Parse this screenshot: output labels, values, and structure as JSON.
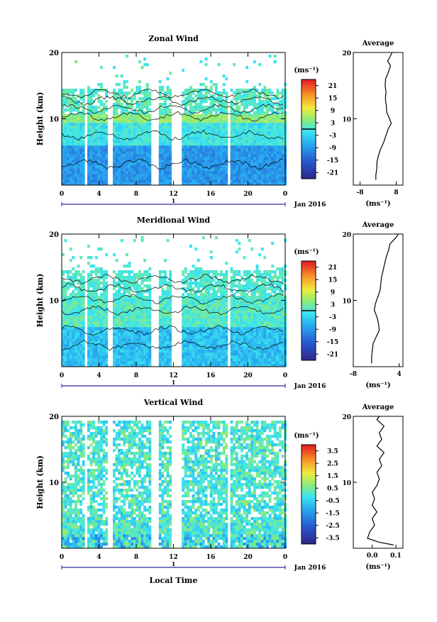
{
  "figure": {
    "time_axis_label": "Local Time",
    "date_label": "Jan 2016",
    "day_label": "1",
    "time_ticks": [
      "0",
      "4",
      "8",
      "12",
      "16",
      "20",
      "0"
    ]
  },
  "chart_data": [
    {
      "type": "heatmap",
      "title": "Zonal Wind",
      "ylabel": "Height (km)",
      "yticks": [
        "20",
        "10"
      ],
      "ylim": [
        0,
        20
      ],
      "xlim": [
        0,
        24
      ],
      "colorbar_unit": "(ms⁻¹)",
      "colorbar_ticks": [
        "21",
        "15",
        "9",
        "3",
        "-3",
        "-9",
        "-15",
        "-21"
      ],
      "colorbar_range": [
        -24,
        24
      ],
      "profile": {
        "title": "Average",
        "xlabel": "(ms⁻¹)",
        "xticks": [
          "-8",
          "8"
        ],
        "xlim": [
          -11,
          11
        ],
        "yticks": [
          "20",
          "10"
        ],
        "points": [
          [
            -1,
            0.8
          ],
          [
            -1,
            1.5
          ],
          [
            -0.6,
            2.5
          ],
          [
            -0.5,
            3.5
          ],
          [
            0.2,
            4.5
          ],
          [
            1.2,
            5.5
          ],
          [
            2.5,
            6.5
          ],
          [
            3.5,
            7.5
          ],
          [
            4.5,
            8.5
          ],
          [
            5.8,
            9.3
          ],
          [
            4.8,
            10.2
          ],
          [
            3.8,
            11
          ],
          [
            3.6,
            12
          ],
          [
            3.2,
            13
          ],
          [
            3.5,
            14
          ],
          [
            3.1,
            15
          ],
          [
            3.3,
            16
          ],
          [
            4.5,
            17
          ],
          [
            5.5,
            18
          ],
          [
            4.2,
            18.7
          ],
          [
            5.2,
            19.3
          ],
          [
            6.2,
            20
          ]
        ]
      },
      "gaps": [
        [
          2.3,
          2.7
        ],
        [
          4.9,
          5.3
        ],
        [
          9.5,
          10.4
        ],
        [
          11.6,
          12.8
        ],
        [
          17.6,
          18
        ]
      ]
    },
    {
      "type": "heatmap",
      "title": "Meridional Wind",
      "ylabel": "Height (km)",
      "yticks": [
        "20",
        "10"
      ],
      "ylim": [
        0,
        20
      ],
      "xlim": [
        0,
        24
      ],
      "colorbar_unit": "(ms⁻¹)",
      "colorbar_ticks": [
        "21",
        "15",
        "9",
        "3",
        "-3",
        "-9",
        "-15",
        "-21"
      ],
      "colorbar_range": [
        -24,
        24
      ],
      "profile": {
        "title": "Average",
        "xlabel": "(ms⁻¹)",
        "xticks": [
          "-8",
          "4"
        ],
        "xlim": [
          -8,
          5
        ],
        "yticks": [
          "20",
          "10"
        ],
        "points": [
          [
            -3.2,
            0.5
          ],
          [
            -3.2,
            1.5
          ],
          [
            -3,
            2.5
          ],
          [
            -2.8,
            3.5
          ],
          [
            -2,
            4.5
          ],
          [
            -1.2,
            5.5
          ],
          [
            -1.4,
            6.5
          ],
          [
            -1.8,
            7.5
          ],
          [
            -2.5,
            8.5
          ],
          [
            -2.2,
            9.5
          ],
          [
            -1.6,
            10.5
          ],
          [
            -1,
            11.5
          ],
          [
            -0.8,
            12.5
          ],
          [
            -0.6,
            13.5
          ],
          [
            -0.2,
            14.5
          ],
          [
            0.2,
            15.5
          ],
          [
            0.6,
            16.5
          ],
          [
            1.2,
            17.5
          ],
          [
            1.6,
            18.5
          ],
          [
            3.2,
            19.5
          ],
          [
            3.8,
            20
          ]
        ]
      },
      "gaps": [
        [
          2.3,
          2.7
        ],
        [
          4.9,
          5.3
        ],
        [
          9.5,
          10.4
        ],
        [
          11.6,
          12.8
        ],
        [
          17.6,
          18
        ]
      ]
    },
    {
      "type": "heatmap",
      "title": "Vertical Wind",
      "ylabel": "Height (km)",
      "yticks": [
        "20",
        "10"
      ],
      "ylim": [
        0,
        20
      ],
      "xlim": [
        0,
        24
      ],
      "colorbar_unit": "(ms⁻¹)",
      "colorbar_ticks": [
        "3.5",
        "2.5",
        "1.5",
        "0.5",
        "-0.5",
        "-1.5",
        "-2.5",
        "-3.5"
      ],
      "colorbar_range": [
        -4,
        4
      ],
      "profile": {
        "title": "Average",
        "xlabel": "(ms⁻¹)",
        "xticks": [
          "0.0",
          "0.1"
        ],
        "xlim": [
          -0.08,
          0.13
        ],
        "yticks": [
          "20",
          "10"
        ],
        "points": [
          [
            0.09,
            0.5
          ],
          [
            0.03,
            0.9
          ],
          [
            -0.02,
            1.5
          ],
          [
            -0.01,
            2.5
          ],
          [
            0.01,
            3.5
          ],
          [
            0.0,
            4.5
          ],
          [
            0.02,
            5.5
          ],
          [
            0.0,
            6.5
          ],
          [
            0.01,
            7.5
          ],
          [
            0.0,
            8.5
          ],
          [
            0.02,
            9.5
          ],
          [
            0.03,
            10.5
          ],
          [
            0.02,
            11.5
          ],
          [
            0.04,
            12.5
          ],
          [
            0.03,
            13.5
          ],
          [
            0.05,
            14.5
          ],
          [
            0.02,
            15.5
          ],
          [
            0.04,
            16.5
          ],
          [
            0.03,
            17.5
          ],
          [
            0.05,
            18.5
          ],
          [
            0.02,
            19.5
          ],
          [
            0.03,
            20
          ]
        ]
      },
      "gaps": [
        [
          2.3,
          2.7
        ],
        [
          4.9,
          5.3
        ],
        [
          9.5,
          10.4
        ],
        [
          11.6,
          12.8
        ],
        [
          17.6,
          18
        ]
      ]
    }
  ]
}
